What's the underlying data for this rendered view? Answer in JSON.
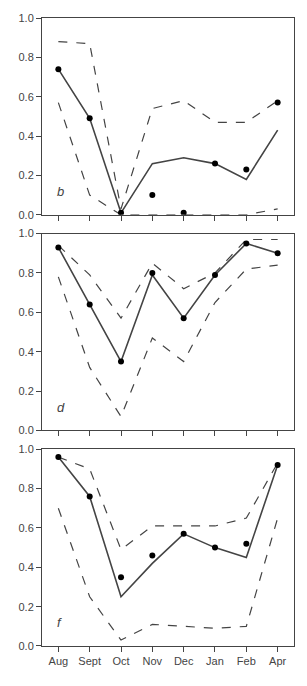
{
  "chart_data": [
    {
      "type": "line",
      "annotations": [
        "b"
      ],
      "categories": [
        "Aug",
        "Sept",
        "Oct",
        "Nov",
        "Dec",
        "Jan",
        "Feb",
        "Apr"
      ],
      "series": [
        {
          "type": "line",
          "line_style": "dashed",
          "color": "#444444",
          "values": [
            0.88,
            0.87,
            0.03,
            0.54,
            0.58,
            0.47,
            0.47,
            0.58
          ]
        },
        {
          "type": "line",
          "line_style": "dashed",
          "color": "#444444",
          "values": [
            0.57,
            0.1,
            0.0,
            0.0,
            0.0,
            0.0,
            0.0,
            0.03
          ]
        },
        {
          "type": "line",
          "line_style": "solid",
          "color": "#444444",
          "values": [
            0.74,
            0.49,
            0.01,
            0.26,
            0.29,
            0.26,
            0.18,
            0.43
          ]
        },
        {
          "type": "scatter",
          "marker": "circle",
          "color": "#000000",
          "values": [
            0.74,
            0.49,
            0.01,
            0.1,
            0.01,
            0.26,
            0.23,
            0.57
          ]
        }
      ],
      "ylim": [
        0.0,
        1.0
      ],
      "yticks": [
        {
          "value": 0.0,
          "label": "0.0"
        },
        0.2,
        0.4,
        0.6,
        0.8,
        {
          "value": 1.0,
          "label": "1.0"
        }
      ],
      "grid": false,
      "tick_labels": "y"
    },
    {
      "type": "line",
      "annotations": [
        "d"
      ],
      "categories": [
        "Aug",
        "Sept",
        "Oct",
        "Nov",
        "Dec",
        "Jan",
        "Feb",
        "Apr"
      ],
      "series": [
        {
          "type": "line",
          "line_style": "dashed",
          "color": "#444444",
          "values": [
            0.94,
            0.79,
            0.57,
            0.85,
            0.72,
            0.8,
            0.97,
            0.97
          ]
        },
        {
          "type": "line",
          "line_style": "dashed",
          "color": "#444444",
          "values": [
            0.78,
            0.32,
            0.07,
            0.47,
            0.35,
            0.65,
            0.82,
            0.84
          ]
        },
        {
          "type": "line",
          "line_style": "solid",
          "color": "#444444",
          "values": [
            0.93,
            0.64,
            0.35,
            0.79,
            0.57,
            0.79,
            0.95,
            0.9
          ]
        },
        {
          "type": "scatter",
          "marker": "circle",
          "color": "#000000",
          "values": [
            0.93,
            0.64,
            0.35,
            0.8,
            0.57,
            0.79,
            0.95,
            0.9
          ]
        }
      ],
      "ylim": [
        0.0,
        1.0
      ],
      "yticks": [
        {
          "value": 0.0,
          "label": "0.0"
        },
        0.2,
        0.4,
        0.6,
        0.8,
        {
          "value": 1.0,
          "label": "1.0"
        }
      ],
      "grid": false,
      "tick_labels": "y"
    },
    {
      "type": "line",
      "annotations": [
        "f"
      ],
      "categories": [
        "Aug",
        "Sept",
        "Oct",
        "Nov",
        "Dec",
        "Jan",
        "Feb",
        "Apr"
      ],
      "series": [
        {
          "type": "line",
          "line_style": "dashed",
          "color": "#444444",
          "values": [
            0.96,
            0.9,
            0.49,
            0.61,
            0.61,
            0.61,
            0.65,
            0.93
          ]
        },
        {
          "type": "line",
          "line_style": "dashed",
          "color": "#444444",
          "values": [
            0.7,
            0.25,
            0.03,
            0.11,
            0.1,
            0.09,
            0.1,
            0.65
          ]
        },
        {
          "type": "line",
          "line_style": "solid",
          "color": "#444444",
          "values": [
            0.96,
            0.76,
            0.25,
            0.42,
            0.57,
            0.5,
            0.45,
            0.92
          ]
        },
        {
          "type": "scatter",
          "marker": "circle",
          "color": "#000000",
          "values": [
            0.96,
            0.76,
            0.35,
            0.46,
            0.57,
            0.5,
            0.52,
            0.92
          ]
        }
      ],
      "ylim": [
        0.0,
        1.0
      ],
      "yticks": [
        {
          "value": 0.0,
          "label": "0.0"
        },
        0.2,
        0.4,
        0.6,
        0.8,
        {
          "value": 1.0,
          "label": "1.0"
        }
      ],
      "grid": false
    }
  ]
}
